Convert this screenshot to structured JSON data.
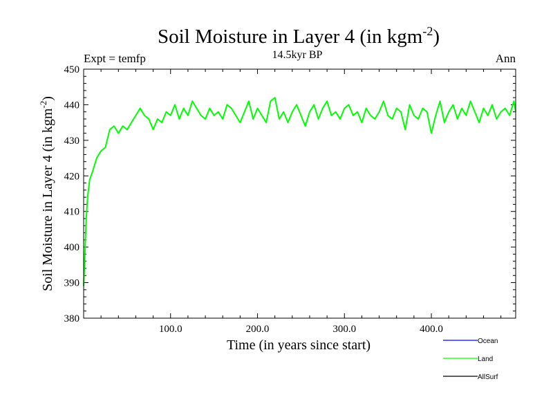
{
  "chart_data": {
    "type": "line",
    "title": "Soil Moisture in Layer 4 (in kgm",
    "title_sup": "-2",
    "title_close": ")",
    "subtitle": "14.5kyr BP",
    "left_label": "Expt = temfp",
    "right_label": "Ann",
    "xlabel": "Time (in years since start)",
    "ylabel": "Soil Moisture in Layer 4 (in kgm",
    "ylabel_sup": "-2",
    "ylabel_close": ")",
    "xlim": [
      0,
      497
    ],
    "ylim": [
      380,
      450
    ],
    "xticks": [
      100,
      200,
      300,
      400
    ],
    "xtick_labels": [
      "100.0",
      "200.0",
      "300.0",
      "400.0"
    ],
    "yticks": [
      380,
      390,
      400,
      410,
      420,
      430,
      440,
      450
    ],
    "ytick_labels": [
      "380",
      "390",
      "400",
      "410",
      "420",
      "430",
      "440",
      "450"
    ],
    "series": [
      {
        "name": "Land",
        "color": "#00ff00",
        "x": [
          0,
          1,
          2,
          3,
          4,
          5,
          7,
          10,
          15,
          20,
          25,
          30,
          35,
          40,
          45,
          50,
          55,
          60,
          65,
          70,
          75,
          80,
          85,
          90,
          95,
          100,
          105,
          110,
          115,
          120,
          125,
          130,
          135,
          140,
          145,
          150,
          155,
          160,
          165,
          170,
          175,
          180,
          185,
          190,
          195,
          200,
          205,
          210,
          215,
          220,
          225,
          230,
          235,
          240,
          245,
          250,
          255,
          260,
          265,
          270,
          275,
          280,
          285,
          290,
          295,
          300,
          305,
          310,
          315,
          320,
          325,
          330,
          335,
          340,
          345,
          350,
          355,
          360,
          365,
          370,
          375,
          380,
          385,
          390,
          395,
          400,
          405,
          410,
          415,
          420,
          425,
          430,
          435,
          440,
          445,
          450,
          455,
          460,
          465,
          470,
          475,
          480,
          485,
          490,
          495,
          497
        ],
        "values": [
          389,
          395,
          402,
          408,
          412,
          415,
          419,
          421,
          425,
          427,
          428,
          433,
          434,
          432,
          434,
          433,
          435,
          437,
          439,
          437,
          436,
          433,
          436,
          435,
          438,
          437,
          440,
          436,
          439,
          437,
          441,
          439,
          437,
          436,
          439,
          437,
          438,
          436,
          440,
          439,
          437,
          435,
          438,
          441,
          436,
          439,
          437,
          435,
          441,
          442,
          436,
          438,
          435,
          438,
          440,
          437,
          434,
          438,
          440,
          436,
          439,
          441,
          437,
          438,
          436,
          439,
          440,
          437,
          438,
          435,
          439,
          437,
          436,
          438,
          441,
          437,
          436,
          439,
          438,
          433,
          440,
          437,
          436,
          439,
          438,
          432,
          437,
          441,
          435,
          438,
          440,
          436,
          439,
          437,
          441,
          438,
          435,
          439,
          437,
          440,
          436,
          438,
          439,
          437,
          441,
          438
        ]
      }
    ]
  },
  "legend": {
    "items": [
      {
        "label": "Ocean",
        "color": "#0000ff"
      },
      {
        "label": "Land",
        "color": "#00ff00"
      },
      {
        "label": "AllSurf",
        "color": "#000000"
      }
    ]
  }
}
